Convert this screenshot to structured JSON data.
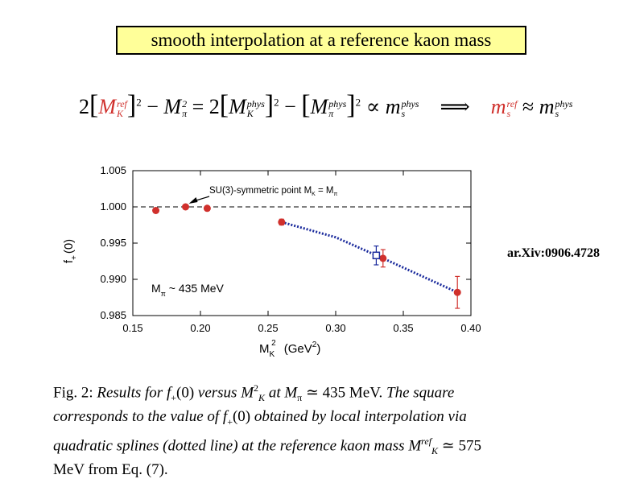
{
  "slide": {
    "title": "smooth interpolation at a reference kaon mass",
    "reference": "ar.Xiv:0906.4728"
  },
  "equation": {
    "coef_left": "2",
    "M": "M",
    "K": "K",
    "pi": "π",
    "ref": "ref",
    "phys": "phys",
    "minus": "−",
    "equals": "=",
    "coef_mid": "2",
    "propto": "∝",
    "m": "m",
    "s": "s",
    "implies": "⟹",
    "approx": "≈",
    "square": "2"
  },
  "chart_data": {
    "type": "scatter",
    "xlabel_main": "M",
    "xlabel_sub": "K",
    "xlabel_sup": "2",
    "xlabel_units": "(GeV",
    "xlabel_units_sup": "2",
    "xlabel_units_close": ")",
    "ylabel": "f",
    "ylabel_sub": "+",
    "ylabel_arg": "(0)",
    "xlim": [
      0.15,
      0.4
    ],
    "ylim": [
      0.985,
      1.005
    ],
    "xticks": [
      "0.15",
      "0.20",
      "0.25",
      "0.30",
      "0.35",
      "0.40"
    ],
    "xtick_values": [
      0.15,
      0.2,
      0.25,
      0.3,
      0.35,
      0.4
    ],
    "yticks": [
      "0.985",
      "0.990",
      "0.995",
      "1.000",
      "1.005"
    ],
    "ytick_values": [
      0.985,
      0.99,
      0.995,
      1.0,
      1.005
    ],
    "reference_line_y": 1.0,
    "series": [
      {
        "name": "data",
        "color": "#d0302c",
        "points": [
          {
            "x": 0.167,
            "y": 0.9995,
            "err": 0
          },
          {
            "x": 0.189,
            "y": 1.0,
            "err": 0
          },
          {
            "x": 0.205,
            "y": 0.9998,
            "err": 0
          },
          {
            "x": 0.26,
            "y": 0.9979,
            "err": 0.0004
          },
          {
            "x": 0.335,
            "y": 0.9929,
            "err": 0.0012
          },
          {
            "x": 0.39,
            "y": 0.9882,
            "err": 0.0022
          }
        ]
      },
      {
        "name": "interpolated",
        "color": "#1a2a9c",
        "points": [
          {
            "x": 0.33,
            "y": 0.9933,
            "err": 0.0013
          }
        ]
      }
    ],
    "spline": {
      "color": "#1a2a9c",
      "points": [
        [
          0.26,
          0.9979
        ],
        [
          0.3,
          0.9958
        ],
        [
          0.335,
          0.9929
        ],
        [
          0.39,
          0.9882
        ]
      ]
    },
    "annotation": "SU(3)-symmetric point M",
    "annotation_sub_k": "K",
    "annotation_eq": " = M",
    "annotation_sub_pi": "π",
    "annotation_target": {
      "x": 0.189,
      "y": 1.0
    },
    "mass_label": "M",
    "mass_label_sub": "π",
    "mass_label_rest": " ~ 435 MeV"
  },
  "caption": {
    "fig": "Fig. 2:",
    "t1": "Results for",
    "f": "f",
    "plus": "+",
    "zero": "(0)",
    "versus": "versus",
    "M": "M",
    "K": "K",
    "two": "2",
    "at": "at",
    "pi": "π",
    "value": "≃ 435 MeV.",
    "t2": "The square corresponds to the value of",
    "t3": "obtained by local interpolation via quadratic splines (dotted line) at the reference kaon mass",
    "ref": "ref",
    "value2": "≃ 575 MeV from Eq. (7)."
  }
}
